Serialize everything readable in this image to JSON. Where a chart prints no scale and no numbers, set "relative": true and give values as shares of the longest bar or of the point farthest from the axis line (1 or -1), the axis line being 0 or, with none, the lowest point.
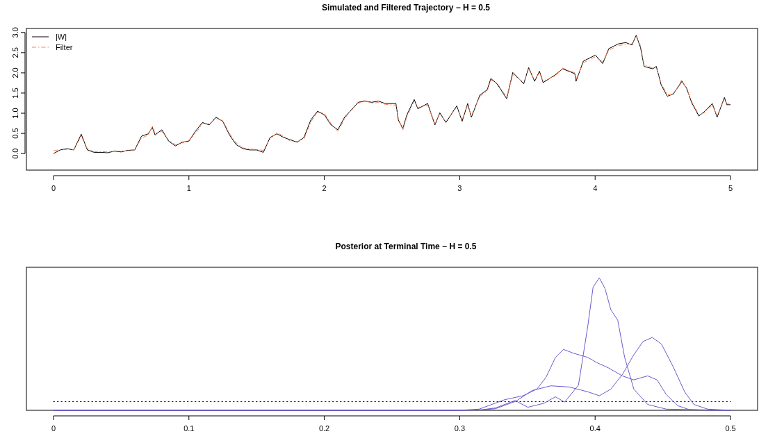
{
  "chart_data": [
    {
      "type": "line",
      "title": "Simulated and Filtered Trajectory − H = 0.5",
      "xlim": [
        -0.2,
        5.2
      ],
      "xticks": [
        0,
        1,
        2,
        3,
        4,
        5
      ],
      "ylim": [
        -0.41,
        3.1
      ],
      "yticks": [
        {
          "value": 0,
          "label": "0.0"
        },
        {
          "value": 0.5,
          "label": "0.5"
        },
        {
          "value": 1,
          "label": "1.0"
        },
        {
          "value": 1.5,
          "label": "1.5"
        },
        {
          "value": 2,
          "label": "2.0"
        },
        {
          "value": 2.5,
          "label": "2.5"
        },
        {
          "value": 3,
          "label": "3.0"
        }
      ],
      "grid": false,
      "legend": "top left",
      "marker": "none",
      "series": [
        {
          "name": "|W|",
          "color": "#000000",
          "line_style": "solid",
          "x": [
            0,
            0.05,
            0.1,
            0.15,
            0.205,
            0.25,
            0.3,
            0.35,
            0.4,
            0.45,
            0.5,
            0.55,
            0.6,
            0.65,
            0.7,
            0.73,
            0.75,
            0.8,
            0.85,
            0.9,
            0.95,
            1.0,
            1.05,
            1.1,
            1.15,
            1.2,
            1.25,
            1.3,
            1.35,
            1.4,
            1.45,
            1.5,
            1.55,
            1.6,
            1.65,
            1.7,
            1.75,
            1.8,
            1.85,
            1.9,
            1.95,
            2.0,
            2.05,
            2.1,
            2.15,
            2.2,
            2.25,
            2.3,
            2.35,
            2.4,
            2.45,
            2.529,
            2.547,
            2.58,
            2.61,
            2.664,
            2.691,
            2.763,
            2.817,
            2.853,
            2.898,
            2.978,
            3.018,
            3.059,
            3.086,
            3.149,
            3.203,
            3.23,
            3.275,
            3.347,
            3.392,
            3.473,
            3.509,
            3.553,
            3.589,
            3.616,
            3.706,
            3.76,
            3.85,
            3.859,
            3.913,
            4.002,
            4.056,
            4.101,
            4.173,
            4.227,
            4.272,
            4.303,
            4.335,
            4.362,
            4.425,
            4.452,
            4.488,
            4.533,
            4.578,
            4.641,
            4.677,
            4.712,
            4.766,
            4.811,
            4.865,
            4.901,
            4.955,
            4.973,
            5.0
          ],
          "values": [
            0,
            0.09,
            0.12,
            0.09,
            0.48,
            0.09,
            0.03,
            0.03,
            0.02,
            0.06,
            0.04,
            0.08,
            0.09,
            0.43,
            0.49,
            0.65,
            0.46,
            0.59,
            0.31,
            0.19,
            0.28,
            0.31,
            0.56,
            0.77,
            0.71,
            0.9,
            0.8,
            0.46,
            0.22,
            0.12,
            0.09,
            0.09,
            0.03,
            0.4,
            0.49,
            0.4,
            0.34,
            0.28,
            0.4,
            0.83,
            1.05,
            0.96,
            0.71,
            0.59,
            0.9,
            1.08,
            1.27,
            1.3,
            1.27,
            1.3,
            1.24,
            1.24,
            0.83,
            0.62,
            0.96,
            1.34,
            1.11,
            1.24,
            0.71,
            1.01,
            0.77,
            1.18,
            0.8,
            1.24,
            0.9,
            1.45,
            1.58,
            1.86,
            1.73,
            1.36,
            2.01,
            1.73,
            2.13,
            1.79,
            2.04,
            1.76,
            1.95,
            2.1,
            1.98,
            1.79,
            2.29,
            2.44,
            2.23,
            2.6,
            2.72,
            2.75,
            2.69,
            2.93,
            2.63,
            2.16,
            2.1,
            2.16,
            1.7,
            1.42,
            1.48,
            1.79,
            1.61,
            1.27,
            0.93,
            1.05,
            1.24,
            0.9,
            1.39,
            1.21,
            1.21
          ]
        },
        {
          "name": "Filter",
          "color": "#ff7f50",
          "line_style": "dashed",
          "x": [
            0,
            0.05,
            0.1,
            0.15,
            0.205,
            0.25,
            0.3,
            0.35,
            0.4,
            0.45,
            0.5,
            0.55,
            0.6,
            0.65,
            0.7,
            0.73,
            0.75,
            0.8,
            0.85,
            0.9,
            0.95,
            1.0,
            1.05,
            1.1,
            1.15,
            1.2,
            1.25,
            1.3,
            1.35,
            1.4,
            1.45,
            1.5,
            1.55,
            1.6,
            1.65,
            1.7,
            1.75,
            1.8,
            1.85,
            1.9,
            1.95,
            2.0,
            2.05,
            2.1,
            2.15,
            2.2,
            2.25,
            2.3,
            2.35,
            2.4,
            2.45,
            2.529,
            2.547,
            2.58,
            2.61,
            2.664,
            2.691,
            2.763,
            2.817,
            2.853,
            2.898,
            2.978,
            3.018,
            3.059,
            3.086,
            3.149,
            3.203,
            3.23,
            3.275,
            3.347,
            3.392,
            3.473,
            3.509,
            3.553,
            3.589,
            3.616,
            3.706,
            3.76,
            3.85,
            3.859,
            3.913,
            4.002,
            4.056,
            4.101,
            4.173,
            4.227,
            4.272,
            4.303,
            4.335,
            4.362,
            4.425,
            4.452,
            4.488,
            4.533,
            4.578,
            4.641,
            4.677,
            4.712,
            4.766,
            4.811,
            4.865,
            4.901,
            4.955,
            4.973,
            5.0
          ],
          "values": [
            0.07,
            0.1,
            0.1,
            0.1,
            0.43,
            0.12,
            0.05,
            0.05,
            0.04,
            0.05,
            0.06,
            0.07,
            0.1,
            0.38,
            0.46,
            0.68,
            0.5,
            0.55,
            0.34,
            0.22,
            0.26,
            0.33,
            0.5,
            0.74,
            0.74,
            0.86,
            0.82,
            0.5,
            0.26,
            0.14,
            0.11,
            0.1,
            0.08,
            0.36,
            0.52,
            0.43,
            0.3,
            0.3,
            0.36,
            0.78,
            1.02,
            1.0,
            0.74,
            0.55,
            0.86,
            1.1,
            1.24,
            1.32,
            1.24,
            1.27,
            1.22,
            1.2,
            0.88,
            0.58,
            0.92,
            1.3,
            1.14,
            1.2,
            0.74,
            0.98,
            0.8,
            1.15,
            0.84,
            1.2,
            0.94,
            1.42,
            1.55,
            1.82,
            1.75,
            1.4,
            1.96,
            1.76,
            2.1,
            1.82,
            2.0,
            1.8,
            1.92,
            2.12,
            2.0,
            1.84,
            2.25,
            2.4,
            2.27,
            2.56,
            2.68,
            2.7,
            2.72,
            2.9,
            2.68,
            2.2,
            2.12,
            2.12,
            1.74,
            1.46,
            1.45,
            1.84,
            1.58,
            1.3,
            0.96,
            1.02,
            1.2,
            0.94,
            1.35,
            1.24,
            1.26
          ]
        }
      ]
    },
    {
      "type": "line",
      "title": "Posterior at Terminal Time − H = 0.5",
      "relative": true,
      "xlim": [
        -0.02,
        0.52
      ],
      "xticks": [
        0,
        0.1,
        0.2,
        0.3,
        0.4,
        0.5
      ],
      "grid": false,
      "legend": false,
      "marker": "none",
      "ref_lines": [
        {
          "axis": "y",
          "value": 0.065,
          "color": "#000000",
          "line_style": "dotted"
        }
      ],
      "series": [
        {
          "color": "#6a5acd",
          "x": [
            0,
            0.2991,
            0.3161,
            0.3264,
            0.3409,
            0.3503,
            0.3621,
            0.3707,
            0.3775,
            0.3877,
            0.3945,
            0.3985,
            0.4031,
            0.4073,
            0.4116,
            0.4167,
            0.4218,
            0.4286,
            0.4388,
            0.4525,
            0.5
          ],
          "values": [
            0,
            0,
            0.004,
            0.018,
            0.074,
            0.023,
            0.053,
            0.102,
            0.062,
            0.19,
            0.63,
            0.93,
            1.0,
            0.92,
            0.76,
            0.68,
            0.4,
            0.16,
            0.044,
            0.009,
            0
          ]
        },
        {
          "color": "#6a5acd",
          "x": [
            0,
            0.2991,
            0.3144,
            0.3212,
            0.3332,
            0.3468,
            0.357,
            0.3638,
            0.3707,
            0.3766,
            0.3843,
            0.3945,
            0.4013,
            0.4099,
            0.4201,
            0.4286,
            0.4388,
            0.4457,
            0.4525,
            0.461,
            0.4695,
            0.4866,
            0.5
          ],
          "values": [
            0,
            0,
            0.009,
            0.035,
            0.08,
            0.11,
            0.16,
            0.25,
            0.4,
            0.46,
            0.43,
            0.4,
            0.36,
            0.32,
            0.26,
            0.23,
            0.26,
            0.23,
            0.12,
            0.035,
            0.005,
            0,
            0
          ]
        },
        {
          "color": "#6a5acd",
          "x": [
            0,
            0.2991,
            0.3161,
            0.3264,
            0.3417,
            0.3536,
            0.3673,
            0.3809,
            0.3945,
            0.4031,
            0.4116,
            0.4201,
            0.4286,
            0.4354,
            0.4422,
            0.449,
            0.4576,
            0.4661,
            0.4729,
            0.4831,
            0.5002
          ],
          "values": [
            0,
            0,
            0.004,
            0.012,
            0.07,
            0.15,
            0.185,
            0.176,
            0.14,
            0.11,
            0.16,
            0.27,
            0.42,
            0.52,
            0.55,
            0.5,
            0.33,
            0.14,
            0.044,
            0.009,
            0
          ]
        }
      ]
    }
  ]
}
